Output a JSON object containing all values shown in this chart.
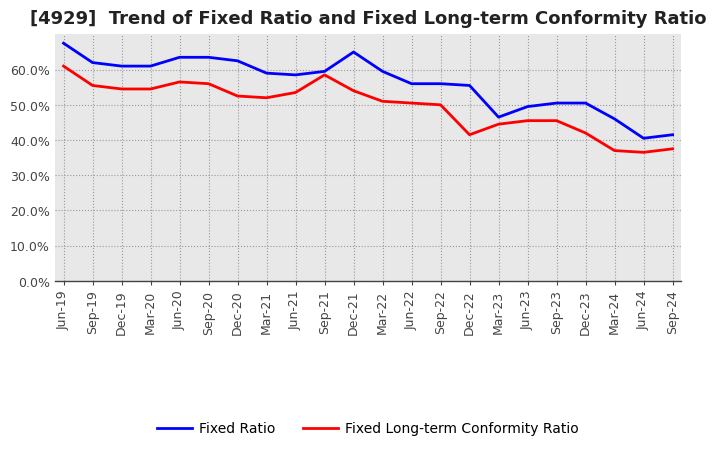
{
  "title": "[4929]  Trend of Fixed Ratio and Fixed Long-term Conformity Ratio",
  "x_labels": [
    "Jun-19",
    "Sep-19",
    "Dec-19",
    "Mar-20",
    "Jun-20",
    "Sep-20",
    "Dec-20",
    "Mar-21",
    "Jun-21",
    "Sep-21",
    "Dec-21",
    "Mar-22",
    "Jun-22",
    "Sep-22",
    "Dec-22",
    "Mar-23",
    "Jun-23",
    "Sep-23",
    "Dec-23",
    "Mar-24",
    "Jun-24",
    "Sep-24"
  ],
  "fixed_ratio": [
    67.5,
    62.0,
    61.0,
    61.0,
    63.5,
    63.5,
    62.5,
    59.0,
    58.5,
    59.5,
    65.0,
    59.5,
    56.0,
    56.0,
    55.5,
    46.5,
    49.5,
    50.5,
    50.5,
    46.0,
    40.5,
    41.5
  ],
  "fixed_lt_ratio": [
    61.0,
    55.5,
    54.5,
    54.5,
    56.5,
    56.0,
    52.5,
    52.0,
    53.5,
    58.5,
    54.0,
    51.0,
    50.5,
    50.0,
    41.5,
    44.5,
    45.5,
    45.5,
    42.0,
    37.0,
    36.5,
    37.5
  ],
  "line_color_fixed": "#0000FF",
  "line_color_lt": "#FF0000",
  "ylim": [
    0,
    70
  ],
  "yticks": [
    0,
    10,
    20,
    30,
    40,
    50,
    60
  ],
  "ytick_labels": [
    "0.0%",
    "10.0%",
    "20.0%",
    "30.0%",
    "40.0%",
    "50.0%",
    "60.0%"
  ],
  "grid_color": "#999999",
  "bg_color": "#ffffff",
  "plot_bg_color": "#e8e8e8",
  "legend_fixed": "Fixed Ratio",
  "legend_lt": "Fixed Long-term Conformity Ratio",
  "title_fontsize": 13,
  "tick_fontsize": 9,
  "legend_fontsize": 10
}
